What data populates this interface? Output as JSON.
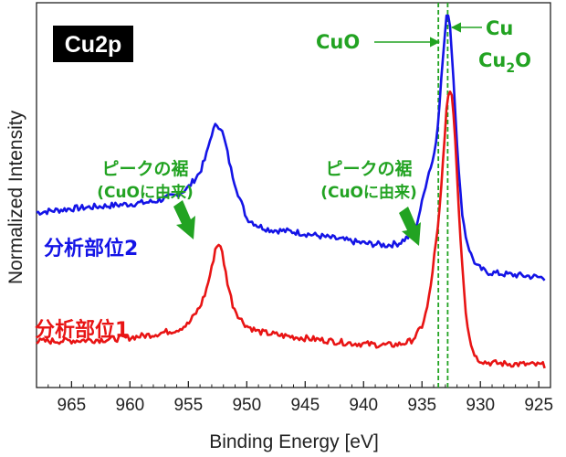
{
  "chart_data": {
    "type": "line",
    "title": "Cu2p",
    "xlabel": "Binding Energy [eV]",
    "ylabel": "Normalized Intensity",
    "xlim": [
      968,
      924
    ],
    "ylim": [
      0,
      1.0
    ],
    "x_reversed": true,
    "x_ticks": [
      965,
      960,
      955,
      950,
      945,
      940,
      935,
      930,
      925
    ],
    "y_ticks": [],
    "grid": false,
    "series": [
      {
        "name": "分析部位2",
        "color": "#1414e6",
        "x": [
          968,
          965,
          962,
          960,
          958,
          956,
          955,
          954,
          953.5,
          953,
          952.6,
          952.2,
          951.8,
          951.3,
          950.7,
          950,
          949,
          948,
          946,
          944,
          942,
          940,
          938,
          937,
          936,
          935.5,
          935,
          934.6,
          934.3,
          934,
          933.8,
          933.6,
          933.4,
          933.2,
          933,
          932.9,
          932.8,
          932.7,
          932.6,
          932.4,
          932.2,
          932,
          931.8,
          931.5,
          931.2,
          930.8,
          930.3,
          929.5,
          928,
          926,
          924.5
        ],
        "values": [
          0.455,
          0.465,
          0.472,
          0.477,
          0.483,
          0.5,
          0.52,
          0.56,
          0.6,
          0.66,
          0.685,
          0.675,
          0.63,
          0.56,
          0.5,
          0.44,
          0.42,
          0.41,
          0.405,
          0.395,
          0.385,
          0.375,
          0.37,
          0.375,
          0.395,
          0.42,
          0.48,
          0.54,
          0.57,
          0.6,
          0.64,
          0.7,
          0.78,
          0.86,
          0.93,
          0.96,
          0.975,
          0.97,
          0.94,
          0.85,
          0.75,
          0.64,
          0.53,
          0.44,
          0.385,
          0.345,
          0.315,
          0.3,
          0.295,
          0.29,
          0.285
        ]
      },
      {
        "name": "分析部位1",
        "color": "#e81414",
        "x": [
          968,
          965,
          962,
          960,
          958,
          956,
          955,
          954,
          953.5,
          953,
          952.7,
          952.4,
          952.1,
          951.7,
          951.2,
          950.6,
          950,
          949,
          947,
          944,
          941,
          938,
          937,
          936,
          935.5,
          935,
          934.6,
          934.3,
          934,
          933.6,
          933.3,
          933.1,
          932.9,
          932.7,
          932.6,
          932.5,
          932.4,
          932.2,
          932,
          931.8,
          931.5,
          931.2,
          930.8,
          930.3,
          929.5,
          928,
          926,
          924.5
        ],
        "values": [
          0.12,
          0.122,
          0.125,
          0.13,
          0.138,
          0.15,
          0.165,
          0.21,
          0.25,
          0.31,
          0.36,
          0.375,
          0.35,
          0.28,
          0.215,
          0.18,
          0.16,
          0.145,
          0.135,
          0.125,
          0.115,
          0.11,
          0.112,
          0.12,
          0.135,
          0.16,
          0.2,
          0.25,
          0.33,
          0.42,
          0.54,
          0.64,
          0.72,
          0.76,
          0.775,
          0.77,
          0.75,
          0.67,
          0.56,
          0.43,
          0.3,
          0.18,
          0.11,
          0.075,
          0.065,
          0.062,
          0.06,
          0.058
        ]
      }
    ],
    "reference_lines": [
      {
        "x": 933.6,
        "color": "#22a322",
        "style": "dashed"
      },
      {
        "x": 932.8,
        "color": "#22a322",
        "style": "dashed"
      }
    ],
    "annotations": {
      "cuo": "CuO",
      "cu": "Cu",
      "cu2o_base": "Cu",
      "cu2o_sub": "2",
      "cu2o_tail": "O",
      "shoulder_line1": "ピークの裾",
      "shoulder_line2": "(CuOに由来)"
    },
    "colors": {
      "annotation_green": "#22a322",
      "title_box": "#000000",
      "title_text": "#ffffff"
    }
  }
}
